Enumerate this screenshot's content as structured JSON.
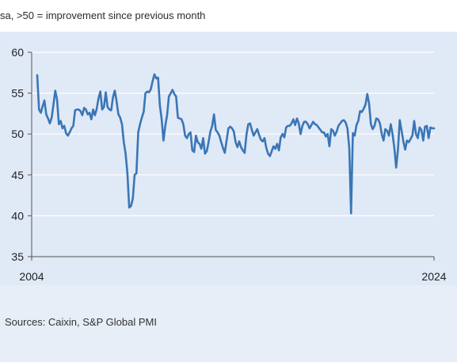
{
  "header": {
    "subtitle": "sa, >50 = improvement since previous month"
  },
  "footer": {
    "source": "Sources: Caixin, S&P Global PMI"
  },
  "chart_data": {
    "type": "line",
    "title": "",
    "xlabel": "",
    "ylabel": "",
    "x_ticks": [
      "2004",
      "2024"
    ],
    "y_ticks": [
      60,
      55,
      50,
      45,
      40,
      35
    ],
    "ylim": [
      35,
      60
    ],
    "x_start": "2004-01",
    "x_end": "2024-01",
    "grid": "horizontal",
    "colors": {
      "line": "#3a76b6",
      "grid": "#ffffff",
      "axis": "#555555"
    },
    "series": [
      {
        "name": "",
        "values": [
          57.2,
          53.0,
          52.6,
          53.4,
          54.1,
          52.4,
          51.9,
          51.3,
          52.0,
          53.6,
          55.3,
          54.2,
          51.2,
          51.6,
          50.7,
          51.0,
          50.1,
          49.8,
          50.2,
          50.7,
          51.0,
          52.9,
          53.0,
          53.0,
          52.8,
          52.3,
          53.2,
          53.0,
          52.4,
          52.6,
          51.8,
          53.0,
          52.3,
          53.1,
          54.4,
          55.2,
          53.0,
          53.3,
          55.1,
          53.3,
          53.0,
          52.9,
          54.5,
          55.3,
          54.0,
          52.4,
          52.0,
          51.2,
          49.0,
          47.6,
          45.2,
          41.0,
          41.2,
          42.1,
          45.0,
          45.2,
          50.2,
          51.2,
          52.0,
          52.7,
          55.0,
          55.2,
          55.1,
          55.5,
          56.5,
          57.3,
          56.8,
          56.9,
          53.5,
          51.8,
          49.2,
          51.0,
          52.3,
          54.6,
          55.0,
          55.4,
          54.9,
          54.6,
          52.0,
          51.9,
          51.8,
          51.2,
          49.8,
          49.5,
          50.0,
          50.2,
          48.0,
          47.8,
          49.8,
          49.0,
          48.8,
          48.2,
          49.5,
          47.6,
          47.9,
          49.0,
          50.3,
          51.0,
          52.4,
          50.5,
          50.2,
          49.8,
          49.0,
          48.3,
          47.7,
          49.2,
          50.7,
          50.9,
          50.7,
          50.3,
          49.0,
          48.4,
          49.1,
          48.4,
          48.0,
          47.7,
          49.9,
          51.2,
          51.3,
          50.5,
          49.8,
          50.2,
          50.6,
          49.9,
          49.3,
          49.1,
          49.5,
          48.3,
          47.6,
          47.3,
          47.9,
          48.5,
          48.2,
          48.8,
          48.0,
          49.6,
          50.0,
          49.6,
          50.8,
          51.0,
          51.0,
          51.3,
          51.8,
          51.1,
          51.9,
          51.3,
          50.0,
          51.0,
          51.5,
          51.5,
          51.2,
          50.7,
          51.1,
          51.5,
          51.2,
          51.1,
          50.8,
          50.5,
          50.2,
          50.2,
          49.7,
          50.0,
          48.5,
          50.6,
          50.4,
          49.8,
          50.3,
          51.0,
          51.3,
          51.6,
          51.7,
          51.4,
          50.7,
          48.3,
          40.3,
          50.1,
          49.8,
          51.1,
          51.6,
          52.8,
          52.7,
          53.1,
          53.6,
          54.9,
          53.7,
          51.2,
          50.6,
          51.0,
          51.9,
          51.8,
          51.3,
          50.0,
          49.2,
          50.6,
          50.4,
          49.8,
          51.2,
          50.0,
          48.3,
          45.9,
          48.1,
          51.7,
          50.4,
          49.1,
          48.1,
          49.2,
          49.0,
          49.4,
          49.8,
          51.6,
          50.0,
          49.5,
          50.8,
          50.5,
          49.2,
          50.9,
          51.0,
          49.5,
          50.8,
          50.7,
          50.7
        ]
      }
    ]
  }
}
